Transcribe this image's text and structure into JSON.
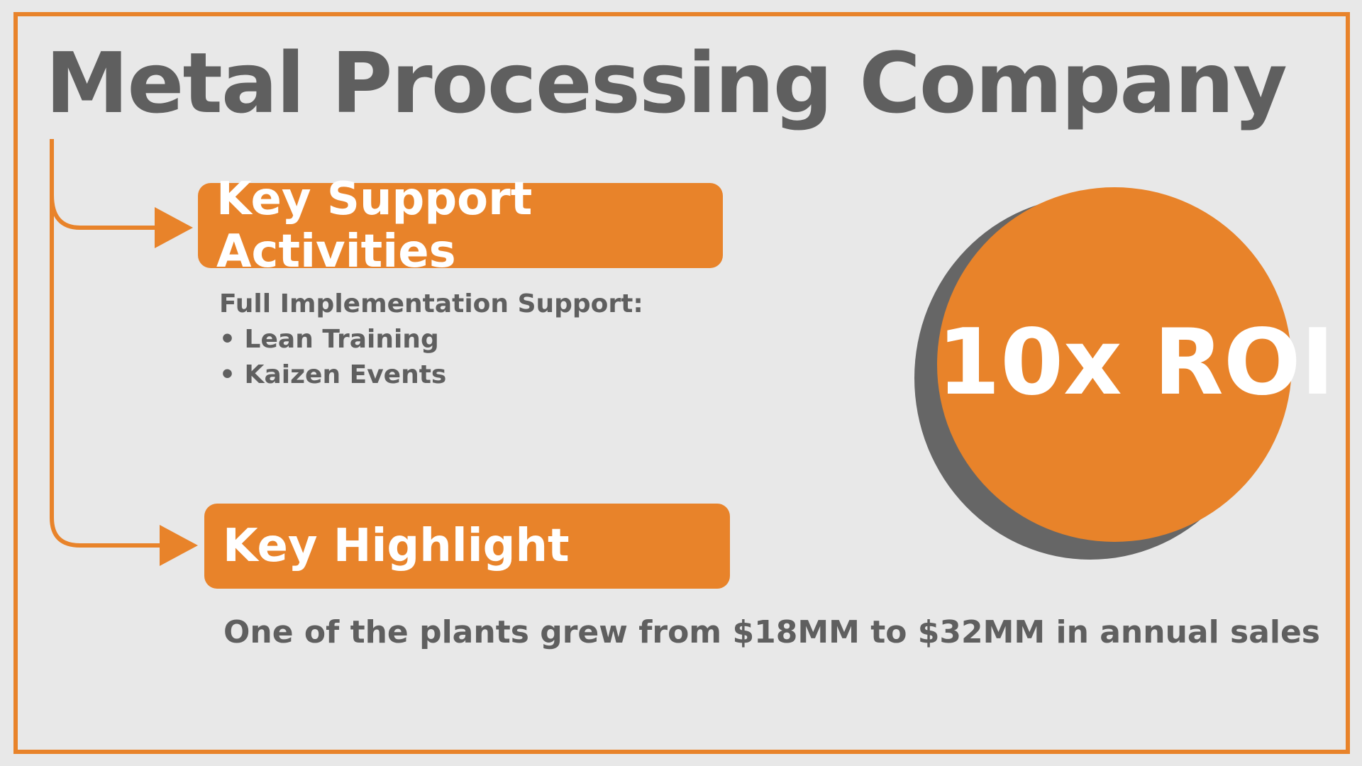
{
  "title": "Metal Processing Company",
  "sections": [
    {
      "heading": "Key Support Activities",
      "lines": [
        "Full Implementation Support:",
        "• Lean Training",
        "• Kaizen Events"
      ]
    },
    {
      "heading": "Key Highlight",
      "lines": [
        "One of the plants grew from $18MM to $32MM in annual sales"
      ]
    }
  ],
  "callout": "10x ROI"
}
